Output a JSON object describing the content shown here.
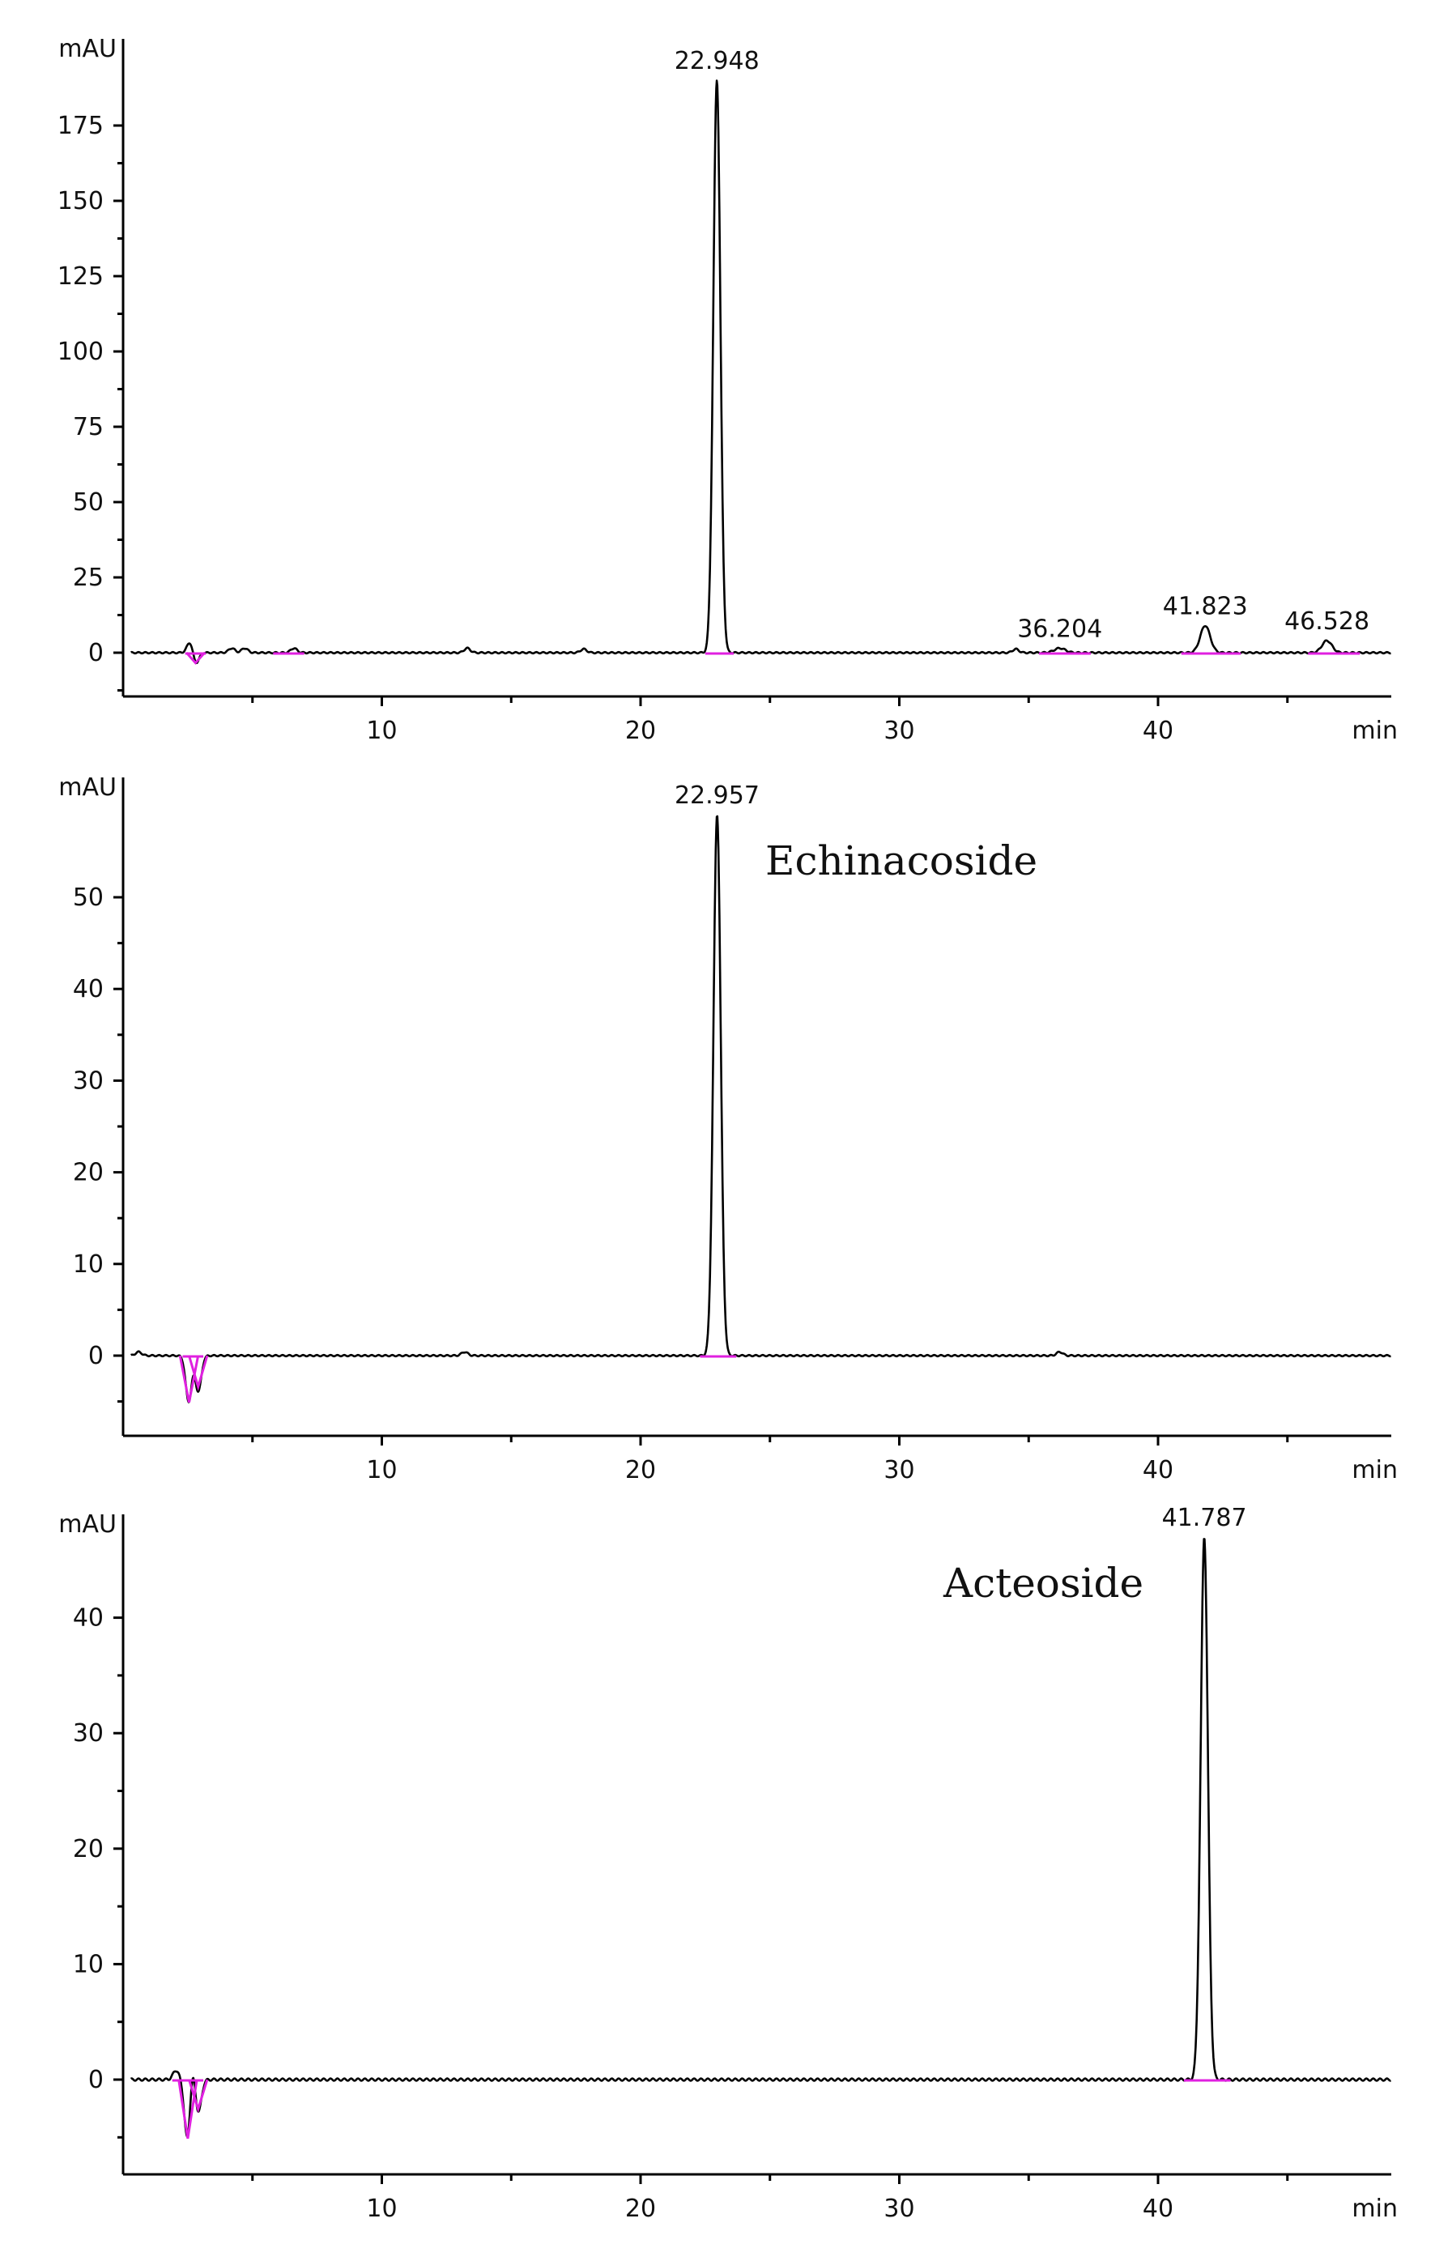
{
  "chart_data": [
    {
      "type": "line",
      "ylabel": "mAU",
      "xlabel": "min",
      "xlim": [
        0,
        49
      ],
      "ylim": [
        -15,
        195
      ],
      "x_ticks": [
        10,
        20,
        30,
        40
      ],
      "y_ticks": [
        0,
        25,
        50,
        75,
        100,
        125,
        150,
        175
      ],
      "peaks": [
        {
          "rt": 22.948,
          "height": 190,
          "width": 0.32,
          "label": "22.948"
        },
        {
          "rt": 36.204,
          "height": 1.5,
          "width": 0.5,
          "label": "36.204"
        },
        {
          "rt": 41.823,
          "height": 9,
          "width": 0.45,
          "label": "41.823"
        },
        {
          "rt": 46.528,
          "height": 4,
          "width": 0.45,
          "label": "46.528"
        }
      ],
      "annotation": "",
      "integration_baselines": [
        [
          2.4,
          3.2
        ],
        [
          5.8,
          7.0
        ],
        [
          22.5,
          23.6
        ],
        [
          35.4,
          37.4
        ],
        [
          40.9,
          43.2
        ],
        [
          45.8,
          47.8
        ]
      ],
      "baseline_wiggles": [
        {
          "x": 2.6,
          "height": 4
        },
        {
          "x": 2.8,
          "height": -4
        },
        {
          "x": 4.2,
          "height": 1.5
        },
        {
          "x": 4.7,
          "height": 1.5
        },
        {
          "x": 6.6,
          "height": 1.5
        },
        {
          "x": 13.3,
          "height": 1.5
        },
        {
          "x": 17.8,
          "height": 1.2
        },
        {
          "x": 34.5,
          "height": 1.2
        }
      ]
    },
    {
      "type": "line",
      "ylabel": "mAU",
      "xlabel": "min",
      "xlim": [
        0,
        49
      ],
      "ylim": [
        -9,
        60
      ],
      "x_ticks": [
        10,
        20,
        30,
        40
      ],
      "y_ticks": [
        0,
        10,
        20,
        30,
        40,
        50
      ],
      "peaks": [
        {
          "rt": 22.957,
          "height": 59,
          "width": 0.33,
          "label": "22.957"
        }
      ],
      "annotation": "Echinacoside",
      "integration_baselines": [
        [
          2.3,
          3.1
        ],
        [
          22.3,
          23.7
        ]
      ],
      "baseline_wiggles": [
        {
          "x": 2.55,
          "height": -6
        },
        {
          "x": 2.65,
          "height": 1.5
        },
        {
          "x": 2.9,
          "height": -4
        },
        {
          "x": 0.6,
          "height": 0.4
        },
        {
          "x": 13.2,
          "height": 0.4
        },
        {
          "x": 36.2,
          "height": 0.4
        }
      ]
    },
    {
      "type": "line",
      "ylabel": "mAU",
      "xlabel": "min",
      "xlim": [
        0,
        49
      ],
      "ylim": [
        -9,
        48
      ],
      "x_ticks": [
        10,
        20,
        30,
        40
      ],
      "y_ticks": [
        0,
        10,
        20,
        30,
        40
      ],
      "peaks": [
        {
          "rt": 41.787,
          "height": 47,
          "width": 0.33,
          "label": "41.787"
        }
      ],
      "annotation": "Acteoside",
      "integration_baselines": [
        [
          1.9,
          3.1
        ],
        [
          41.0,
          42.8
        ]
      ],
      "baseline_wiggles": [
        {
          "x": 2.05,
          "height": 0.8
        },
        {
          "x": 2.5,
          "height": -6
        },
        {
          "x": 2.65,
          "height": 2.5
        },
        {
          "x": 2.9,
          "height": -3
        }
      ]
    }
  ]
}
